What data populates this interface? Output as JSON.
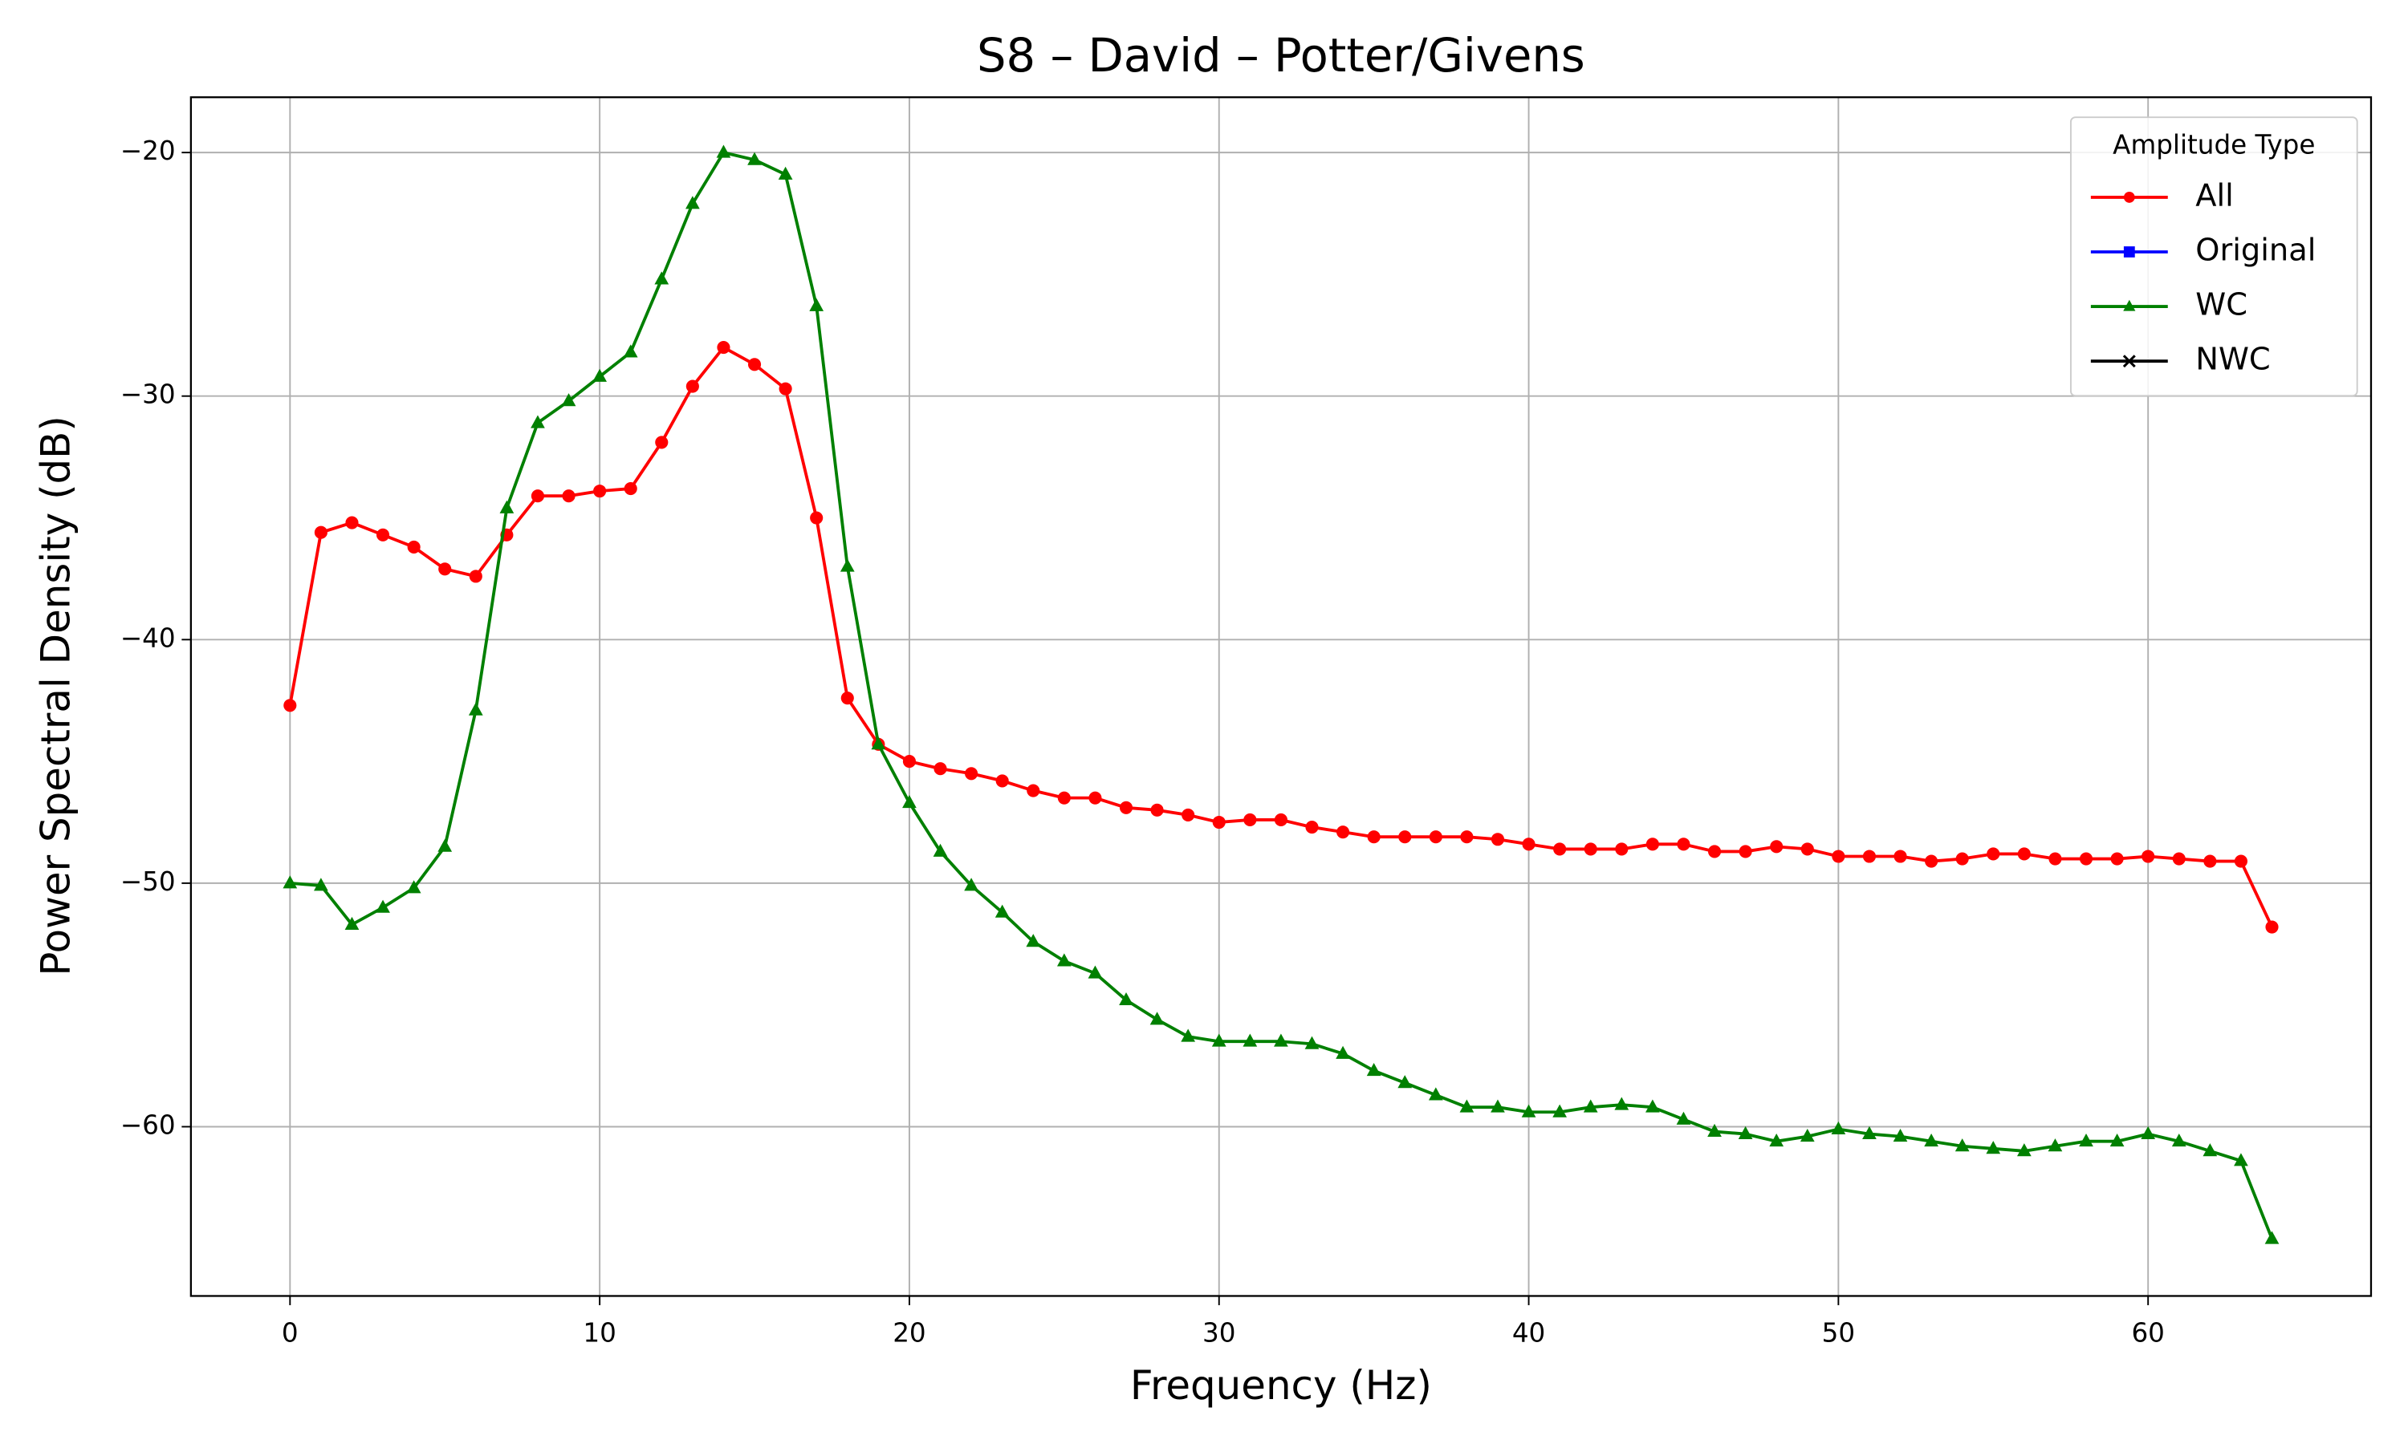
{
  "chart_data": {
    "type": "line",
    "title": "S8 – David – Potter/Givens",
    "x_label": "Frequency (Hz)",
    "y_label": "Power Spectral Density (dB)",
    "x": [
      0,
      1,
      2,
      3,
      4,
      5,
      6,
      7,
      8,
      9,
      10,
      11,
      12,
      13,
      14,
      15,
      16,
      17,
      18,
      19,
      20,
      21,
      22,
      23,
      24,
      25,
      26,
      27,
      28,
      29,
      30,
      31,
      32,
      33,
      34,
      35,
      36,
      37,
      38,
      39,
      40,
      41,
      42,
      43,
      44,
      45,
      46,
      47,
      48,
      49,
      50,
      51,
      52,
      53,
      54,
      55,
      56,
      57,
      58,
      59,
      60,
      61,
      62,
      63,
      64
    ],
    "series": [
      {
        "name": "All",
        "color": "#ff0000",
        "marker": "circle",
        "values": [
          -42.7,
          -35.6,
          -35.2,
          -35.7,
          -36.2,
          -37.1,
          -37.4,
          -35.7,
          -34.1,
          -34.1,
          -33.9,
          -33.8,
          -31.9,
          -29.6,
          -28.0,
          -28.7,
          -29.7,
          -35.0,
          -42.4,
          -44.3,
          -45.0,
          -45.3,
          -45.5,
          -45.8,
          -46.2,
          -46.5,
          -46.5,
          -46.9,
          -47.0,
          -47.2,
          -47.5,
          -47.4,
          -47.4,
          -47.7,
          -47.9,
          -48.1,
          -48.1,
          -48.1,
          -48.1,
          -48.2,
          -48.4,
          -48.6,
          -48.6,
          -48.6,
          -48.4,
          -48.4,
          -48.7,
          -48.7,
          -48.5,
          -48.6,
          -48.9,
          -48.9,
          -48.9,
          -49.1,
          -49.0,
          -48.8,
          -48.8,
          -49.0,
          -49.0,
          -49.0,
          -48.9,
          -49.0,
          -49.1,
          -49.1,
          -51.8
        ]
      },
      {
        "name": "Original",
        "color": "#0000ff",
        "marker": "square",
        "values": [
          null,
          null,
          null,
          null,
          null,
          null,
          null,
          null,
          null,
          null,
          null,
          null,
          null,
          null,
          null,
          null,
          null,
          null,
          null,
          null,
          null,
          null,
          null,
          null,
          null,
          null,
          null,
          null,
          null,
          null,
          null,
          null,
          null,
          null,
          null,
          null,
          null,
          null,
          null,
          null,
          null,
          null,
          null,
          null,
          null,
          null,
          null,
          null,
          null,
          null,
          null,
          null,
          null,
          null,
          null,
          null,
          null,
          null,
          null,
          null,
          null,
          null,
          null,
          null,
          null
        ]
      },
      {
        "name": "WC",
        "color": "#008000",
        "marker": "triangle",
        "values": [
          -50.0,
          -50.1,
          -51.7,
          -51.0,
          -50.2,
          -48.5,
          -42.9,
          -34.6,
          -31.1,
          -30.2,
          -29.2,
          -28.2,
          -25.2,
          -22.1,
          -20.0,
          -20.3,
          -20.9,
          -26.3,
          -37.0,
          -44.3,
          -46.7,
          -48.7,
          -50.1,
          -51.2,
          -52.4,
          -53.2,
          -53.7,
          -54.8,
          -55.6,
          -56.3,
          -56.5,
          -56.5,
          -56.5,
          -56.6,
          -57.0,
          -57.7,
          -58.2,
          -58.7,
          -59.2,
          -59.2,
          -59.4,
          -59.4,
          -59.2,
          -59.1,
          -59.2,
          -59.7,
          -60.2,
          -60.3,
          -60.6,
          -60.4,
          -60.1,
          -60.3,
          -60.4,
          -60.6,
          -60.8,
          -60.9,
          -61.0,
          -60.8,
          -60.6,
          -60.6,
          -60.3,
          -60.6,
          -61.0,
          -61.4,
          -64.6
        ]
      },
      {
        "name": "NWC",
        "color": "#000000",
        "marker": "x",
        "values": [
          null,
          null,
          null,
          null,
          null,
          null,
          null,
          null,
          null,
          null,
          null,
          null,
          null,
          null,
          null,
          null,
          null,
          null,
          null,
          null,
          null,
          null,
          null,
          null,
          null,
          null,
          null,
          null,
          null,
          null,
          null,
          null,
          null,
          null,
          null,
          null,
          null,
          null,
          null,
          null,
          null,
          null,
          null,
          null,
          null,
          null,
          null,
          null,
          null,
          null,
          null,
          null,
          null,
          null,
          null,
          null,
          null,
          null,
          null,
          null,
          null,
          null,
          null,
          null,
          null
        ]
      }
    ],
    "xlim": [
      -3.2,
      67.2
    ],
    "ylim": [
      -66.95,
      -17.73
    ],
    "xticks": [
      0,
      10,
      20,
      30,
      40,
      50,
      60
    ],
    "yticks": [
      {
        "value": -60,
        "label": "−60"
      },
      {
        "value": -50,
        "label": "−50"
      },
      {
        "value": -40,
        "label": "−40"
      },
      {
        "value": -30,
        "label": "−30"
      },
      {
        "value": -20,
        "label": "−20"
      }
    ],
    "grid": true,
    "legend_title": "Amplitude Type",
    "legend_position": "upper right"
  }
}
